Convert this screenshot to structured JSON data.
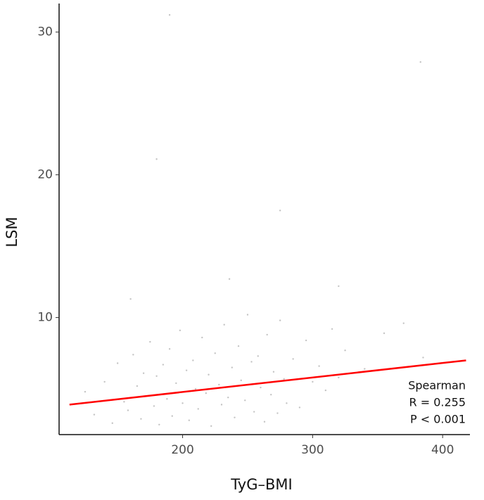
{
  "chart_data": {
    "type": "scatter",
    "xlabel": "TyG–BMI",
    "ylabel": "LSM",
    "xlim": [
      105,
      421
    ],
    "ylim": [
      1.8,
      32
    ],
    "xticks": [
      200,
      300,
      400
    ],
    "yticks": [
      10,
      20,
      30
    ],
    "grid": false,
    "series": [
      {
        "kind": "points",
        "color": "#c4c4c4",
        "x": [
          125,
          132,
          140,
          146,
          150,
          155,
          158,
          162,
          165,
          168,
          170,
          172,
          175,
          178,
          180,
          182,
          185,
          188,
          190,
          192,
          195,
          198,
          200,
          203,
          205,
          208,
          210,
          212,
          215,
          218,
          220,
          222,
          225,
          228,
          230,
          232,
          235,
          238,
          240,
          243,
          245,
          248,
          250,
          253,
          255,
          258,
          260,
          263,
          265,
          268,
          270,
          273,
          275,
          278,
          280,
          285,
          290,
          295,
          300,
          305,
          310,
          315,
          320,
          325,
          340,
          355,
          370,
          385,
          180,
          190,
          275,
          383,
          236,
          320,
          160
        ],
        "values": [
          4.8,
          3.2,
          5.5,
          2.6,
          6.8,
          4.1,
          3.5,
          7.4,
          5.2,
          2.9,
          6.1,
          4.5,
          8.3,
          3.8,
          5.9,
          2.5,
          6.7,
          4.3,
          7.8,
          3.1,
          5.4,
          9.1,
          4.0,
          6.3,
          2.8,
          7.0,
          5.0,
          3.6,
          8.6,
          4.7,
          6.0,
          2.4,
          7.5,
          5.3,
          3.9,
          9.5,
          4.4,
          6.5,
          3.0,
          8.0,
          5.6,
          4.2,
          10.2,
          6.9,
          3.4,
          7.3,
          5.1,
          2.7,
          8.8,
          4.6,
          6.2,
          3.3,
          9.8,
          5.7,
          4.0,
          7.1,
          3.7,
          8.4,
          5.5,
          6.6,
          4.9,
          9.2,
          5.8,
          7.7,
          6.4,
          8.9,
          9.6,
          7.2,
          21.1,
          31.2,
          17.5,
          27.9,
          12.7,
          12.2,
          11.3
        ]
      },
      {
        "kind": "fit",
        "color": "#ff0000",
        "x": [
          113,
          418
        ],
        "values": [
          3.9,
          7.0
        ]
      }
    ],
    "annotation": [
      "Spearman",
      "R = 0.255",
      "P < 0.001"
    ]
  }
}
